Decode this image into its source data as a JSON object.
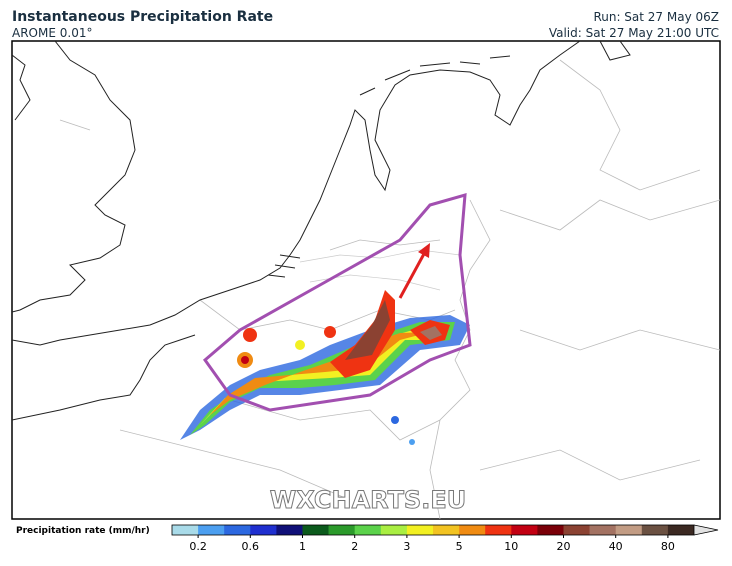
{
  "header": {
    "title": "Instantaneous Precipitation Rate",
    "model": "AROME 0.01°",
    "run": "Run: Sat 27 May 06Z",
    "valid": "Valid: Sat 27 May 21:00 UTC"
  },
  "watermark": "WXCHARTS.EU",
  "legend": {
    "label": "Precipitation rate (mm/hr)",
    "ticks": [
      0.2,
      0.6,
      1,
      2,
      3,
      5,
      10,
      20,
      40,
      80
    ],
    "colors": [
      "#a9dbe9",
      "#4c9ff0",
      "#2c68e0",
      "#1f2fcf",
      "#101078",
      "#0b5a1c",
      "#2b9a2b",
      "#5bd24b",
      "#a9ee42",
      "#f2f022",
      "#f2c322",
      "#f08b12",
      "#ef3312",
      "#c20012",
      "#7a0008",
      "#8b4232",
      "#a37262",
      "#c29c84",
      "#6b5142",
      "#3b2922"
    ],
    "end_color": "#e2e2e2"
  }
}
